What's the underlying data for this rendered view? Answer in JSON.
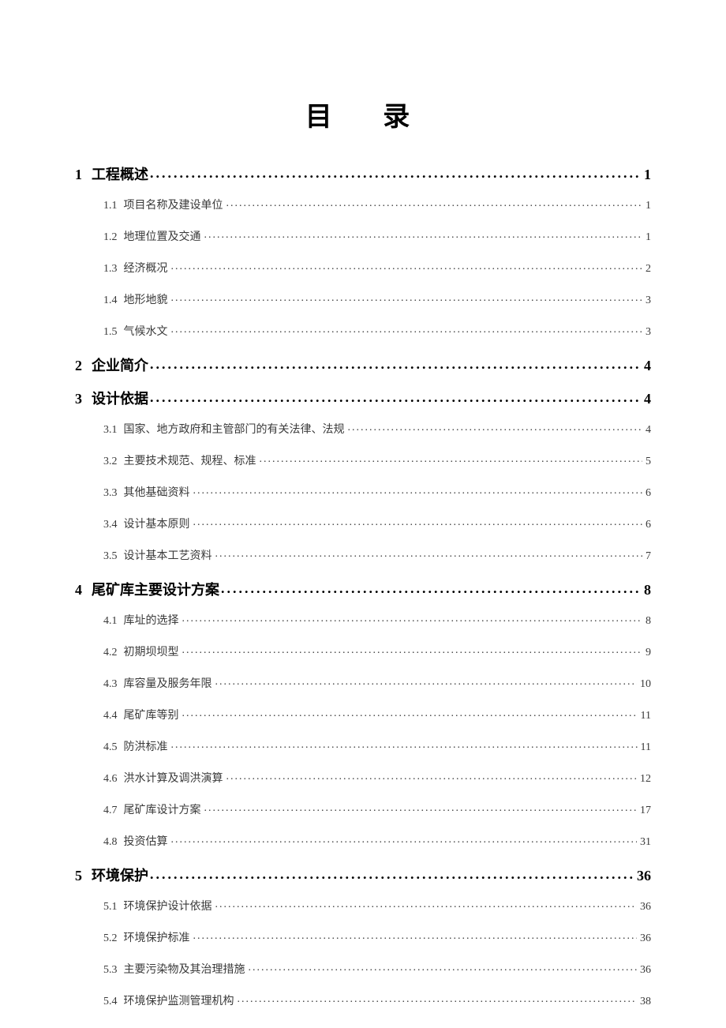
{
  "title": "目 录",
  "title_fontsize": 34,
  "title_letterspacing": 28,
  "body_width": 920,
  "body_height": 1302,
  "background_color": "#ffffff",
  "text_color_l1": "#000000",
  "text_color_l2": "#3a3a3a",
  "font_family": "SimSun",
  "level1_fontsize": 18,
  "level2_fontsize": 14,
  "level2_indent": 36,
  "entries": [
    {
      "level": 1,
      "number": "1",
      "text": "工程概述",
      "page": "1"
    },
    {
      "level": 2,
      "number": "1.1",
      "text": "项目名称及建设单位",
      "page": "1"
    },
    {
      "level": 2,
      "number": "1.2",
      "text": "地理位置及交通",
      "page": "1"
    },
    {
      "level": 2,
      "number": "1.3",
      "text": "经济概况",
      "page": "2"
    },
    {
      "level": 2,
      "number": "1.4",
      "text": "地形地貌",
      "page": "3"
    },
    {
      "level": 2,
      "number": "1.5",
      "text": "气候水文",
      "page": "3"
    },
    {
      "level": 1,
      "number": "2",
      "text": "企业简介",
      "page": "4"
    },
    {
      "level": 1,
      "number": "3",
      "text": "设计依据",
      "page": "4"
    },
    {
      "level": 2,
      "number": "3.1",
      "text": "国家、地方政府和主管部门的有关法律、法规",
      "page": "4"
    },
    {
      "level": 2,
      "number": "3.2",
      "text": "主要技术规范、规程、标准",
      "page": "5"
    },
    {
      "level": 2,
      "number": "3.3",
      "text": "其他基础资料",
      "page": "6"
    },
    {
      "level": 2,
      "number": "3.4",
      "text": "设计基本原则",
      "page": "6"
    },
    {
      "level": 2,
      "number": "3.5",
      "text": "设计基本工艺资料",
      "page": "7"
    },
    {
      "level": 1,
      "number": "4",
      "text": "尾矿库主要设计方案",
      "page": "8"
    },
    {
      "level": 2,
      "number": "4.1",
      "text": "库址的选择",
      "page": "8"
    },
    {
      "level": 2,
      "number": "4.2",
      "text": "初期坝坝型",
      "page": "9"
    },
    {
      "level": 2,
      "number": "4.3",
      "text": "库容量及服务年限",
      "page": "10"
    },
    {
      "level": 2,
      "number": "4.4",
      "text": "尾矿库等别",
      "page": "11"
    },
    {
      "level": 2,
      "number": "4.5",
      "text": "防洪标准",
      "page": "11"
    },
    {
      "level": 2,
      "number": "4.6",
      "text": "洪水计算及调洪演算",
      "page": "12"
    },
    {
      "level": 2,
      "number": "4.7",
      "text": "尾矿库设计方案",
      "page": "17"
    },
    {
      "level": 2,
      "number": "4.8",
      "text": "投资估算",
      "page": "31"
    },
    {
      "level": 1,
      "number": "5",
      "text": "环境保护",
      "page": "36"
    },
    {
      "level": 2,
      "number": "5.1",
      "text": "环境保护设计依据",
      "page": "36"
    },
    {
      "level": 2,
      "number": "5.2",
      "text": "环境保护标准",
      "page": "36"
    },
    {
      "level": 2,
      "number": "5.3",
      "text": "主要污染物及其治理措施",
      "page": "36"
    },
    {
      "level": 2,
      "number": "5.4",
      "text": "环境保护监测管理机构",
      "page": "38"
    }
  ]
}
